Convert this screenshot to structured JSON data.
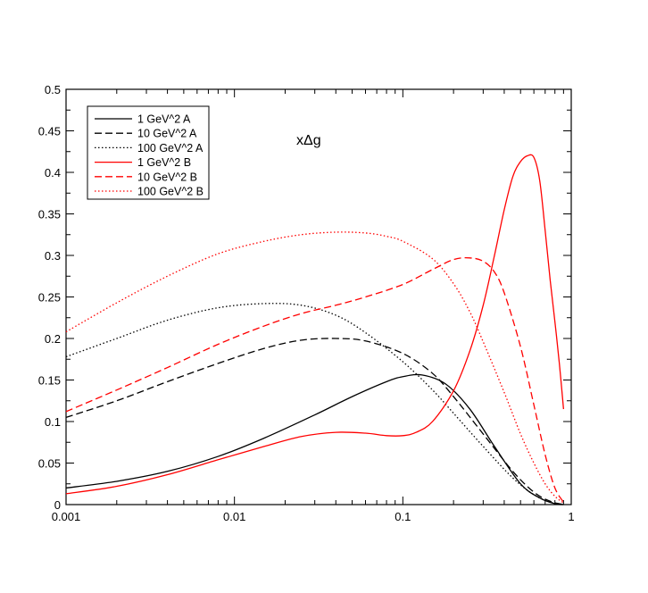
{
  "chart_data": {
    "type": "line",
    "title": "",
    "annotation": "xΔg",
    "xlabel": "",
    "ylabel": "",
    "xscale": "log",
    "xlim": [
      0.001,
      1
    ],
    "ylim": [
      0,
      0.5
    ],
    "grid": false,
    "legend_position": "top-left",
    "x_ticks": [
      {
        "value": 0.001,
        "label": "0.001"
      },
      {
        "value": 0.01,
        "label": "0.01"
      },
      {
        "value": 0.1,
        "label": "0.1"
      },
      {
        "value": 1,
        "label": "1"
      }
    ],
    "y_ticks": [
      {
        "value": 0,
        "label": "0"
      },
      {
        "value": 0.05,
        "label": "0.05"
      },
      {
        "value": 0.1,
        "label": "0.1"
      },
      {
        "value": 0.15,
        "label": "0.15"
      },
      {
        "value": 0.2,
        "label": "0.2"
      },
      {
        "value": 0.25,
        "label": "0.25"
      },
      {
        "value": 0.3,
        "label": "0.3"
      },
      {
        "value": 0.35,
        "label": "0.35"
      },
      {
        "value": 0.4,
        "label": "0.4"
      },
      {
        "value": 0.45,
        "label": "0.45"
      },
      {
        "value": 0.5,
        "label": "0.5"
      }
    ],
    "series": [
      {
        "name": "1 GeV^2 A",
        "color": "#000000",
        "dash": "solid",
        "x": [
          0.001,
          0.002,
          0.004,
          0.008,
          0.015,
          0.03,
          0.05,
          0.08,
          0.1,
          0.13,
          0.18,
          0.25,
          0.35,
          0.5,
          0.65,
          0.8,
          0.9
        ],
        "y": [
          0.02,
          0.028,
          0.04,
          0.058,
          0.08,
          0.108,
          0.13,
          0.148,
          0.154,
          0.156,
          0.145,
          0.115,
          0.07,
          0.025,
          0.008,
          0.001,
          0
        ]
      },
      {
        "name": "10 GeV^2 A",
        "color": "#000000",
        "dash": "dash",
        "x": [
          0.001,
          0.002,
          0.004,
          0.008,
          0.015,
          0.025,
          0.04,
          0.06,
          0.1,
          0.15,
          0.2,
          0.3,
          0.45,
          0.6,
          0.75,
          0.9
        ],
        "y": [
          0.105,
          0.125,
          0.148,
          0.17,
          0.188,
          0.198,
          0.2,
          0.197,
          0.182,
          0.158,
          0.13,
          0.085,
          0.04,
          0.015,
          0.004,
          0
        ]
      },
      {
        "name": "100 GeV^2 A",
        "color": "#000000",
        "dash": "dot",
        "x": [
          0.001,
          0.002,
          0.004,
          0.008,
          0.015,
          0.025,
          0.04,
          0.06,
          0.1,
          0.15,
          0.2,
          0.3,
          0.45,
          0.6,
          0.75,
          0.9
        ],
        "y": [
          0.178,
          0.2,
          0.222,
          0.237,
          0.242,
          0.24,
          0.228,
          0.207,
          0.172,
          0.138,
          0.11,
          0.07,
          0.032,
          0.012,
          0.003,
          0
        ]
      },
      {
        "name": "1 GeV^2 B",
        "color": "#ff0000",
        "dash": "solid",
        "x": [
          0.001,
          0.002,
          0.004,
          0.008,
          0.015,
          0.025,
          0.04,
          0.06,
          0.08,
          0.1,
          0.12,
          0.15,
          0.2,
          0.25,
          0.3,
          0.35,
          0.4,
          0.45,
          0.5,
          0.55,
          0.6,
          0.65,
          0.7,
          0.75,
          0.8,
          0.85,
          0.9
        ],
        "y": [
          0.013,
          0.022,
          0.036,
          0.054,
          0.07,
          0.082,
          0.087,
          0.086,
          0.083,
          0.083,
          0.087,
          0.1,
          0.137,
          0.185,
          0.24,
          0.3,
          0.355,
          0.395,
          0.413,
          0.42,
          0.418,
          0.39,
          0.33,
          0.27,
          0.22,
          0.17,
          0.115
        ]
      },
      {
        "name": "10 GeV^2 B",
        "color": "#ff0000",
        "dash": "dash",
        "x": [
          0.001,
          0.002,
          0.004,
          0.008,
          0.015,
          0.025,
          0.04,
          0.06,
          0.1,
          0.15,
          0.2,
          0.25,
          0.3,
          0.35,
          0.4,
          0.5,
          0.6,
          0.7,
          0.8,
          0.9
        ],
        "y": [
          0.112,
          0.138,
          0.165,
          0.193,
          0.215,
          0.23,
          0.24,
          0.25,
          0.265,
          0.283,
          0.295,
          0.297,
          0.293,
          0.28,
          0.255,
          0.19,
          0.12,
          0.06,
          0.02,
          0.003
        ]
      },
      {
        "name": "100 GeV^2 B",
        "color": "#ff0000",
        "dash": "dot",
        "x": [
          0.001,
          0.002,
          0.004,
          0.008,
          0.015,
          0.025,
          0.04,
          0.06,
          0.08,
          0.1,
          0.15,
          0.2,
          0.25,
          0.3,
          0.4,
          0.5,
          0.6,
          0.7,
          0.8,
          0.9
        ],
        "y": [
          0.208,
          0.243,
          0.275,
          0.302,
          0.317,
          0.325,
          0.328,
          0.327,
          0.323,
          0.317,
          0.296,
          0.266,
          0.232,
          0.196,
          0.135,
          0.085,
          0.05,
          0.025,
          0.01,
          0.002
        ]
      }
    ]
  }
}
